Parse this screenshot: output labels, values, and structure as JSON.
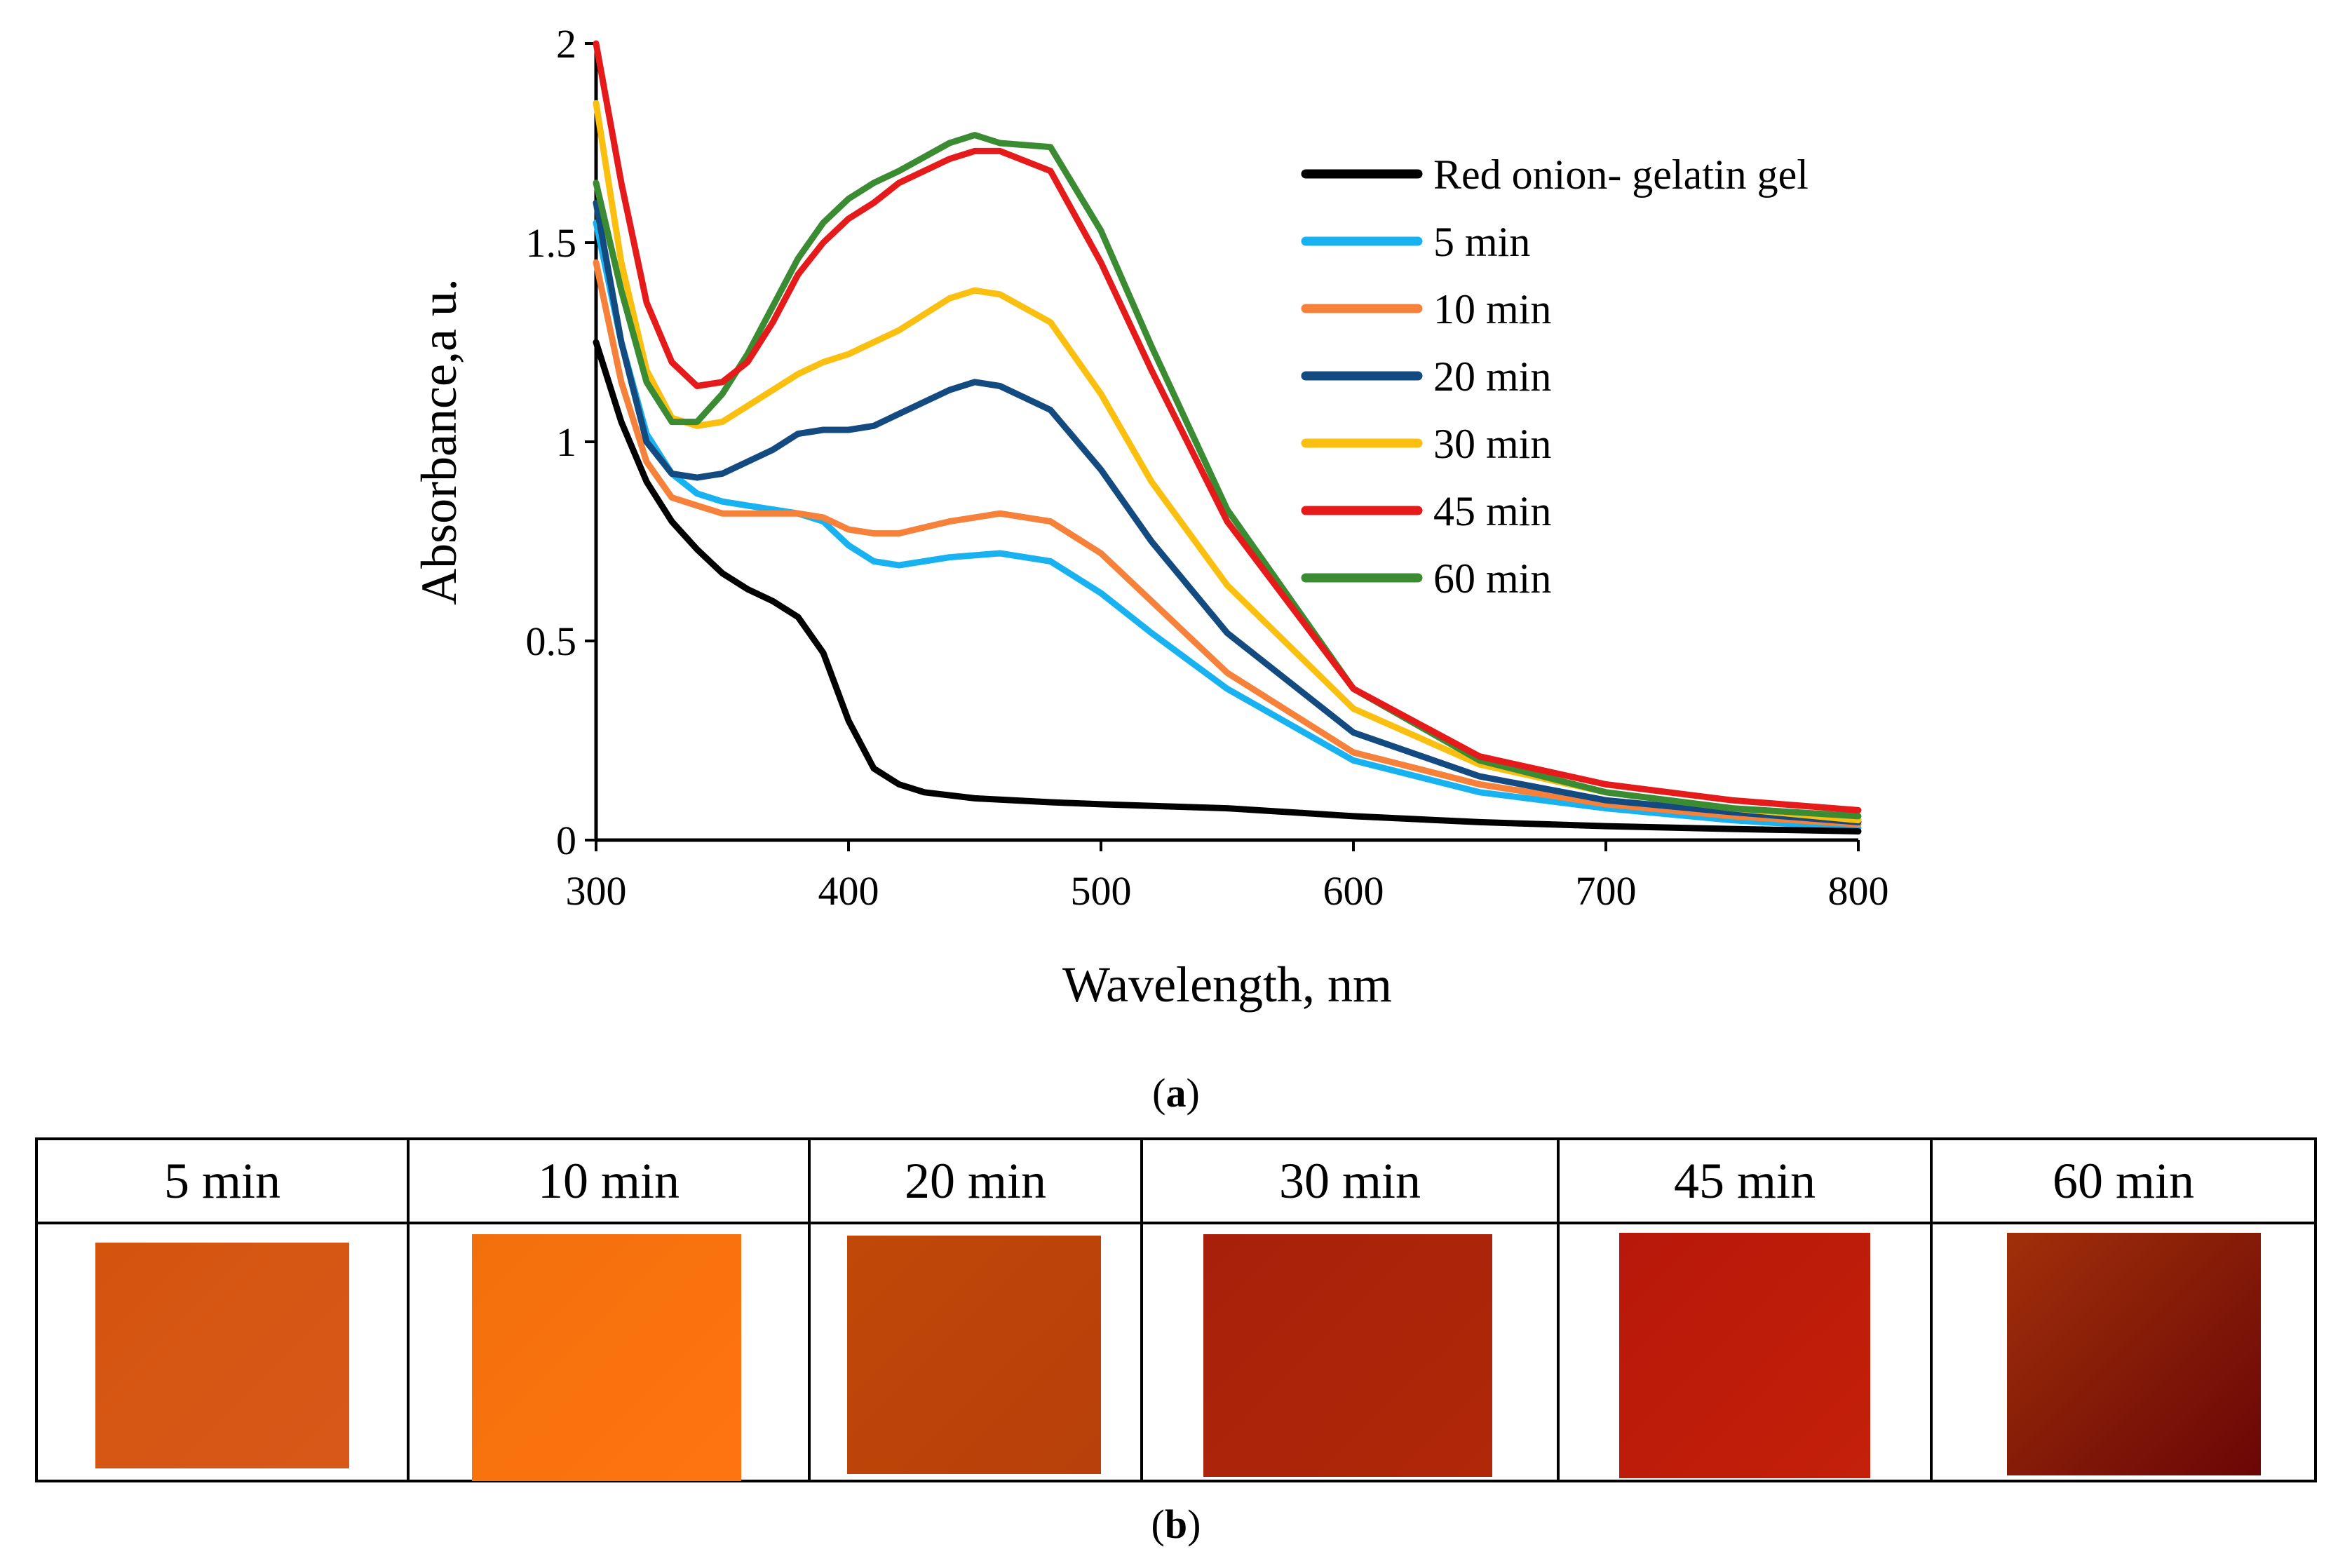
{
  "chart_data": {
    "type": "line",
    "xlabel": "Wavelength, nm",
    "ylabel": "Absorbance,a u.",
    "xlim": [
      300,
      800
    ],
    "ylim": [
      0,
      2
    ],
    "xticks": [
      "300",
      "400",
      "500",
      "600",
      "700",
      "800"
    ],
    "yticks": [
      "0",
      "0.5",
      "1",
      "1.5",
      "2"
    ],
    "legend_position": "top-right",
    "series": [
      {
        "name": "Red onion- gelatin gel",
        "color": "#000000",
        "x": [
          300,
          310,
          320,
          330,
          340,
          350,
          360,
          370,
          380,
          390,
          400,
          410,
          420,
          430,
          450,
          480,
          500,
          550,
          600,
          650,
          700,
          750,
          800
        ],
        "y": [
          1.25,
          1.05,
          0.9,
          0.8,
          0.73,
          0.67,
          0.63,
          0.6,
          0.56,
          0.47,
          0.3,
          0.18,
          0.14,
          0.12,
          0.105,
          0.095,
          0.09,
          0.08,
          0.06,
          0.045,
          0.035,
          0.028,
          0.022
        ]
      },
      {
        "name": "5 min",
        "color": "#19B2F0",
        "x": [
          300,
          310,
          320,
          330,
          340,
          350,
          360,
          370,
          380,
          390,
          400,
          410,
          420,
          440,
          460,
          480,
          500,
          520,
          550,
          600,
          650,
          700,
          750,
          800
        ],
        "y": [
          1.55,
          1.25,
          1.02,
          0.92,
          0.87,
          0.85,
          0.84,
          0.83,
          0.82,
          0.8,
          0.74,
          0.7,
          0.69,
          0.71,
          0.72,
          0.7,
          0.62,
          0.52,
          0.38,
          0.2,
          0.12,
          0.08,
          0.05,
          0.03
        ]
      },
      {
        "name": "10 min",
        "color": "#F5813A",
        "x": [
          300,
          310,
          320,
          330,
          340,
          350,
          360,
          370,
          380,
          390,
          400,
          410,
          420,
          440,
          460,
          480,
          500,
          520,
          550,
          600,
          650,
          700,
          750,
          800
        ],
        "y": [
          1.45,
          1.15,
          0.95,
          0.86,
          0.84,
          0.82,
          0.82,
          0.82,
          0.82,
          0.81,
          0.78,
          0.77,
          0.77,
          0.8,
          0.82,
          0.8,
          0.72,
          0.6,
          0.42,
          0.22,
          0.14,
          0.09,
          0.06,
          0.04
        ]
      },
      {
        "name": "20 min",
        "color": "#134A80",
        "x": [
          300,
          310,
          320,
          330,
          340,
          350,
          360,
          370,
          380,
          390,
          400,
          410,
          420,
          440,
          450,
          460,
          480,
          500,
          520,
          550,
          600,
          650,
          700,
          750,
          800
        ],
        "y": [
          1.6,
          1.25,
          1.0,
          0.92,
          0.91,
          0.92,
          0.95,
          0.98,
          1.02,
          1.03,
          1.03,
          1.04,
          1.07,
          1.13,
          1.15,
          1.14,
          1.08,
          0.93,
          0.75,
          0.52,
          0.27,
          0.16,
          0.1,
          0.07,
          0.045
        ]
      },
      {
        "name": "30 min",
        "color": "#FBBF10",
        "x": [
          300,
          310,
          320,
          330,
          340,
          350,
          360,
          370,
          380,
          390,
          400,
          420,
          440,
          450,
          460,
          480,
          500,
          520,
          550,
          600,
          650,
          700,
          750,
          800
        ],
        "y": [
          1.85,
          1.45,
          1.18,
          1.06,
          1.04,
          1.05,
          1.09,
          1.13,
          1.17,
          1.2,
          1.22,
          1.28,
          1.36,
          1.38,
          1.37,
          1.3,
          1.12,
          0.9,
          0.64,
          0.33,
          0.19,
          0.12,
          0.08,
          0.05
        ]
      },
      {
        "name": "45 min",
        "color": "#E51A1A",
        "x": [
          300,
          310,
          320,
          330,
          340,
          350,
          360,
          370,
          380,
          390,
          400,
          410,
          420,
          440,
          450,
          460,
          480,
          500,
          520,
          550,
          600,
          650,
          700,
          750,
          800
        ],
        "y": [
          2.0,
          1.65,
          1.35,
          1.2,
          1.14,
          1.15,
          1.2,
          1.3,
          1.42,
          1.5,
          1.56,
          1.6,
          1.65,
          1.71,
          1.73,
          1.73,
          1.68,
          1.45,
          1.18,
          0.8,
          0.38,
          0.21,
          0.14,
          0.1,
          0.075
        ]
      },
      {
        "name": "60 min",
        "color": "#3A8B32",
        "x": [
          300,
          310,
          320,
          330,
          340,
          350,
          360,
          370,
          380,
          390,
          400,
          410,
          420,
          440,
          450,
          460,
          480,
          500,
          520,
          550,
          600,
          650,
          700,
          750,
          800
        ],
        "y": [
          1.65,
          1.38,
          1.15,
          1.05,
          1.05,
          1.12,
          1.22,
          1.34,
          1.46,
          1.55,
          1.61,
          1.65,
          1.68,
          1.75,
          1.77,
          1.75,
          1.74,
          1.53,
          1.24,
          0.83,
          0.38,
          0.2,
          0.12,
          0.08,
          0.06
        ]
      }
    ]
  },
  "captions": {
    "a": "a",
    "b": "b"
  },
  "swatch_table": {
    "labels": [
      "5 min",
      "10 min",
      "20 min",
      "30 min",
      "45 min",
      "60 min"
    ],
    "colors": [
      [
        "#D4540E",
        "#D8581A"
      ],
      [
        "#F2700C",
        "#FF7410"
      ],
      [
        "#C04808",
        "#B8400A"
      ],
      [
        "#A8200A",
        "#B02808"
      ],
      [
        "#B8180A",
        "#C4200A"
      ],
      [
        "#A0300A",
        "#6A0606"
      ]
    ]
  }
}
